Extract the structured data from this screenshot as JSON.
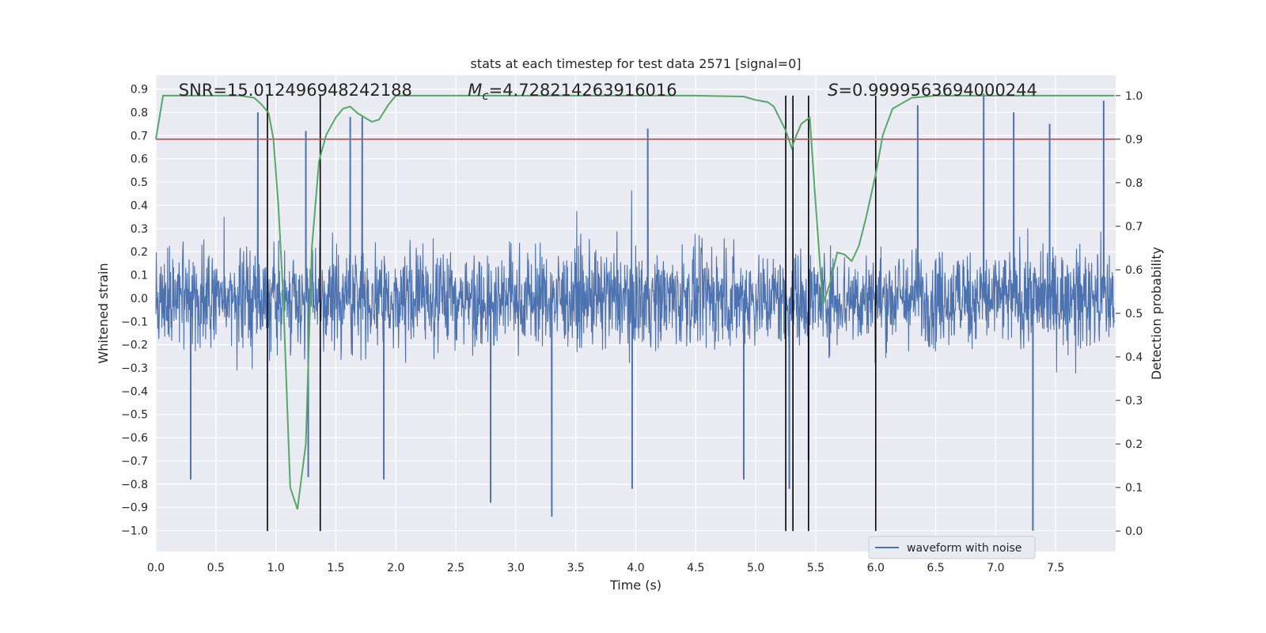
{
  "chart_data": {
    "type": "line",
    "title": "stats at each timestep for test data 2571 [signal=0]",
    "xlabel": "Time (s)",
    "ylabel": "Whitened strain",
    "y2label": "Detection probability",
    "xlim": [
      0.0,
      8.0
    ],
    "ylim": [
      -1.09,
      0.96
    ],
    "y2lim": [
      -0.047,
      1.047
    ],
    "xticks": [
      0.0,
      0.5,
      1.0,
      1.5,
      2.0,
      2.5,
      3.0,
      3.5,
      4.0,
      4.5,
      5.0,
      5.5,
      6.0,
      6.5,
      7.0,
      7.5
    ],
    "xtick_labels": [
      "0.0",
      "0.5",
      "1.0",
      "1.5",
      "2.0",
      "2.5",
      "3.0",
      "3.5",
      "4.0",
      "4.5",
      "5.0",
      "5.5",
      "6.0",
      "6.5",
      "7.0",
      "7.5"
    ],
    "yticks": [
      -1.0,
      -0.9,
      -0.8,
      -0.7,
      -0.6,
      -0.5,
      -0.4,
      -0.3,
      -0.2,
      -0.1,
      0.0,
      0.1,
      0.2,
      0.3,
      0.4,
      0.5,
      0.6,
      0.7,
      0.8,
      0.9
    ],
    "ytick_labels": [
      "−1.0",
      "−0.9",
      "−0.8",
      "−0.7",
      "−0.6",
      "−0.5",
      "−0.4",
      "−0.3",
      "−0.2",
      "−0.1",
      "0.0",
      "0.1",
      "0.2",
      "0.3",
      "0.4",
      "0.5",
      "0.6",
      "0.7",
      "0.8",
      "0.9"
    ],
    "y2ticks": [
      0.0,
      0.1,
      0.2,
      0.3,
      0.4,
      0.5,
      0.6,
      0.7,
      0.8,
      0.9,
      1.0
    ],
    "y2tick_labels": [
      "0.0",
      "0.1",
      "0.2",
      "0.3",
      "0.4",
      "0.5",
      "0.6",
      "0.7",
      "0.8",
      "0.9",
      "1.0"
    ],
    "grid": true,
    "colors": {
      "waveform": "#4c72b0",
      "probability": "#55a868",
      "threshold": "#c44e52",
      "marker": "#000000",
      "background": "#eaeaf2",
      "grid": "#ffffff"
    },
    "series": [
      {
        "name": "waveform with noise",
        "axis": "left",
        "description": "dense noisy whitened strain, typical envelope about +/-0.4 with spikes",
        "spikes": [
          {
            "x": 0.29,
            "y": -0.78
          },
          {
            "x": 0.85,
            "y": 0.8
          },
          {
            "x": 1.25,
            "y": 0.72
          },
          {
            "x": 1.27,
            "y": -0.77
          },
          {
            "x": 1.62,
            "y": 0.78
          },
          {
            "x": 1.72,
            "y": 0.78
          },
          {
            "x": 1.9,
            "y": -0.78
          },
          {
            "x": 2.79,
            "y": -0.88
          },
          {
            "x": 3.3,
            "y": -0.94
          },
          {
            "x": 3.97,
            "y": -0.82
          },
          {
            "x": 4.1,
            "y": 0.73
          },
          {
            "x": 4.9,
            "y": -0.78
          },
          {
            "x": 5.28,
            "y": -0.82
          },
          {
            "x": 5.44,
            "y": -0.7
          },
          {
            "x": 6.35,
            "y": 0.83
          },
          {
            "x": 6.9,
            "y": 0.88
          },
          {
            "x": 7.15,
            "y": 0.8
          },
          {
            "x": 7.31,
            "y": -1.0
          },
          {
            "x": 7.45,
            "y": 0.75
          },
          {
            "x": 7.9,
            "y": 0.85
          }
        ]
      },
      {
        "name": "detection probability",
        "axis": "right",
        "x": [
          0.0,
          0.06,
          0.12,
          0.3,
          0.5,
          0.7,
          0.82,
          0.88,
          0.94,
          0.98,
          1.02,
          1.06,
          1.12,
          1.18,
          1.25,
          1.3,
          1.36,
          1.42,
          1.5,
          1.56,
          1.62,
          1.68,
          1.8,
          1.86,
          1.94,
          2.0,
          2.2,
          2.6,
          3.0,
          3.5,
          4.0,
          4.5,
          4.9,
          5.0,
          5.1,
          5.15,
          5.25,
          5.3,
          5.34,
          5.38,
          5.45,
          5.5,
          5.56,
          5.62,
          5.68,
          5.74,
          5.8,
          5.86,
          5.92,
          6.0,
          6.06,
          6.14,
          6.3,
          6.5,
          7.0,
          7.5,
          7.99
        ],
        "y": [
          0.9,
          1.0,
          1.0,
          1.0,
          1.0,
          1.0,
          0.995,
          0.98,
          0.96,
          0.9,
          0.75,
          0.55,
          0.1,
          0.05,
          0.2,
          0.65,
          0.85,
          0.91,
          0.95,
          0.97,
          0.975,
          0.96,
          0.94,
          0.945,
          0.98,
          1.0,
          1.0,
          1.0,
          1.0,
          1.0,
          1.0,
          1.0,
          0.998,
          0.99,
          0.985,
          0.975,
          0.92,
          0.88,
          0.91,
          0.935,
          0.95,
          0.75,
          0.52,
          0.57,
          0.64,
          0.635,
          0.62,
          0.655,
          0.72,
          0.82,
          0.91,
          0.97,
          0.995,
          1.0,
          1.0,
          1.0,
          1.0
        ]
      },
      {
        "name": "threshold",
        "axis": "right",
        "type": "hline",
        "y": 0.9
      }
    ],
    "vertical_markers": [
      0.93,
      1.37,
      5.25,
      5.31,
      5.44,
      6.0
    ],
    "annotations": [
      {
        "text": "SNR=15.012496948242188",
        "x_data": 0.19
      },
      {
        "text": "=4.728214263916016",
        "prefix_math": "M",
        "subscript": "c",
        "x_data": 2.6
      },
      {
        "text": "=0.9999563694000244",
        "prefix_math": "S",
        "x_data": 5.6
      }
    ],
    "legend": {
      "entries": [
        "waveform with noise"
      ],
      "position": "lower-right"
    }
  }
}
